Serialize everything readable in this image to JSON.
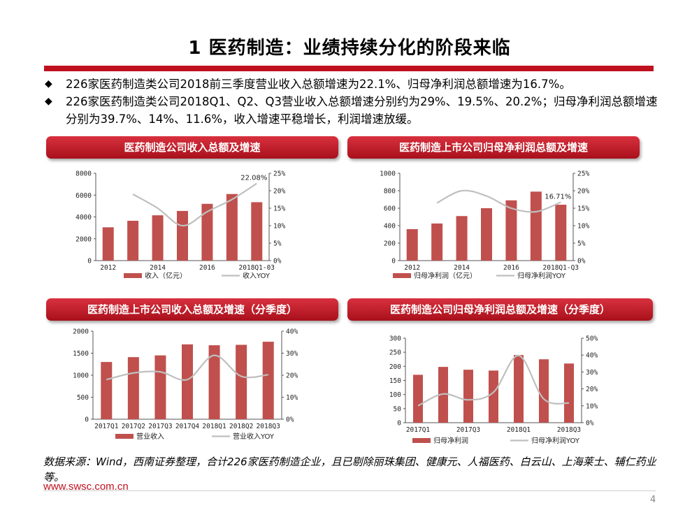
{
  "slide": {
    "title": "1 医药制造：业绩持续分化的阶段来临",
    "bullets": [
      "226家医药制造类公司2018前三季度营业收入总额增速为22.1%、归母净利润总额增速为16.7%。",
      "226家医药制造类公司2018Q1、Q2、Q3营业收入总额增速分别约为29%、19.5%、20.2%；归母净利润总额增速分别为39.7%、14%、11.6%，收入增速平稳增长，利润增速放缓。"
    ],
    "bullet_mark": "◆",
    "source": "数据来源：Wind，西南证券整理，合计226家医药制造企业，且已剔除丽珠集团、健康元、人福医药、白云山、上海莱士、辅仁药业等。",
    "url": "www.swsc.com.cn",
    "page_number": "4",
    "accent_color": "#c0111f"
  },
  "panels": {
    "p1": {
      "header": "医药制造公司收入总额及增速"
    },
    "p2": {
      "header": "医药制造上市公司归母净利润总额及增速"
    },
    "p3": {
      "header": "医药制造上市公司收入总额及增速（分季度）"
    },
    "p4": {
      "header": "医药制造公司归母净利润总额及增速（分季度）"
    }
  },
  "chart_data": [
    {
      "type": "bar",
      "title": "医药制造公司收入总额及增速",
      "categories": [
        "2012",
        "2013",
        "2014",
        "2015",
        "2016",
        "2017",
        "2018Q1-Q3"
      ],
      "x_tick_labels": [
        "2012",
        "",
        "2014",
        "",
        "2016",
        "",
        "2018Q1-03"
      ],
      "series": [
        {
          "name": "收入（亿元）",
          "type": "bar",
          "axis": "left",
          "color": "#c0504d",
          "values": [
            3050,
            3650,
            4150,
            4550,
            5200,
            6100,
            5350
          ]
        },
        {
          "name": "收入YOY",
          "type": "line",
          "axis": "right",
          "color": "#bfbfbf",
          "values": [
            null,
            19,
            15,
            10,
            14,
            17.5,
            22.08
          ]
        }
      ],
      "y_left": {
        "min": 0,
        "max": 8000,
        "ticks": [
          "0",
          "2000",
          "4000",
          "6000",
          "8000"
        ]
      },
      "y_right": {
        "min": 0,
        "max": 25,
        "ticks": [
          "0%",
          "5%",
          "10%",
          "15%",
          "20%",
          "25%"
        ]
      },
      "annotations": [
        {
          "series": 1,
          "index": 6,
          "text": "22.08%"
        }
      ]
    },
    {
      "type": "bar",
      "title": "医药制造上市公司归母净利润总额及增速",
      "categories": [
        "2012",
        "2013",
        "2014",
        "2015",
        "2016",
        "2017",
        "2018Q1-Q3"
      ],
      "x_tick_labels": [
        "2012",
        "",
        "2014",
        "",
        "2016",
        "",
        "2018Q1-Q3"
      ],
      "series": [
        {
          "name": "归母净利润（亿元）",
          "type": "bar",
          "axis": "left",
          "color": "#c0504d",
          "values": [
            360,
            425,
            510,
            600,
            690,
            790,
            640
          ]
        },
        {
          "name": "归母净利润YOY",
          "type": "line",
          "axis": "right",
          "color": "#bfbfbf",
          "values": [
            null,
            16.5,
            20,
            18.5,
            15,
            14,
            16.71
          ]
        }
      ],
      "y_left": {
        "min": 0,
        "max": 1000,
        "ticks": [
          "0",
          "200",
          "400",
          "600",
          "800",
          "1000"
        ]
      },
      "y_right": {
        "min": 0,
        "max": 25,
        "ticks": [
          "0%",
          "5%",
          "10%",
          "15%",
          "20%",
          "25%"
        ]
      },
      "annotations": [
        {
          "series": 1,
          "index": 6,
          "text": "16.71%"
        }
      ]
    },
    {
      "type": "bar",
      "title": "医药制造上市公司收入总额及增速（分季度）",
      "categories": [
        "2017Q1",
        "2017Q2",
        "2017Q3",
        "2017Q4",
        "2018Q1",
        "2018Q2",
        "2018Q3"
      ],
      "x_tick_labels": [
        "2017Q1",
        "2017Q2",
        "2017Q3",
        "2017Q4",
        "2018Q1",
        "2018Q2",
        "2018Q3"
      ],
      "series": [
        {
          "name": "营业收入",
          "type": "bar",
          "axis": "left",
          "color": "#c0504d",
          "values": [
            1300,
            1410,
            1450,
            1700,
            1680,
            1690,
            1760
          ]
        },
        {
          "name": "营业收入YOY",
          "type": "line",
          "axis": "right",
          "color": "#bfbfbf",
          "values": [
            18,
            21,
            21.5,
            18,
            29,
            19.5,
            20.2
          ]
        }
      ],
      "y_left": {
        "min": 0,
        "max": 2000,
        "ticks": [
          "0",
          "500",
          "1000",
          "1500",
          "2000"
        ]
      },
      "y_right": {
        "min": 0,
        "max": 40,
        "ticks": [
          "0%",
          "10%",
          "20%",
          "30%",
          "40%"
        ]
      },
      "annotations": []
    },
    {
      "type": "bar",
      "title": "医药制造公司归母净利润总额及增速（分季度）",
      "categories": [
        "2017Q1",
        "2017Q2",
        "2017Q3",
        "2017Q4",
        "2018Q1",
        "2018Q2",
        "2018Q3"
      ],
      "x_tick_labels": [
        "2017Q1",
        "",
        "2017Q3",
        "",
        "2018Q1",
        "",
        "2018Q3"
      ],
      "series": [
        {
          "name": "归母净利润",
          "type": "bar",
          "axis": "left",
          "color": "#c0504d",
          "values": [
            170,
            198,
            188,
            185,
            240,
            225,
            210
          ]
        },
        {
          "name": "归母净利润YOY",
          "type": "line",
          "axis": "right",
          "color": "#bfbfbf",
          "values": [
            10,
            17,
            13.5,
            18,
            39.7,
            14,
            11.6
          ]
        }
      ],
      "y_left": {
        "min": 0,
        "max": 300,
        "ticks": [
          "0",
          "50",
          "100",
          "150",
          "200",
          "250",
          "300"
        ]
      },
      "y_right": {
        "min": 0,
        "max": 50,
        "ticks": [
          "0%",
          "10%",
          "20%",
          "30%",
          "40%",
          "50%"
        ]
      },
      "annotations": []
    }
  ]
}
